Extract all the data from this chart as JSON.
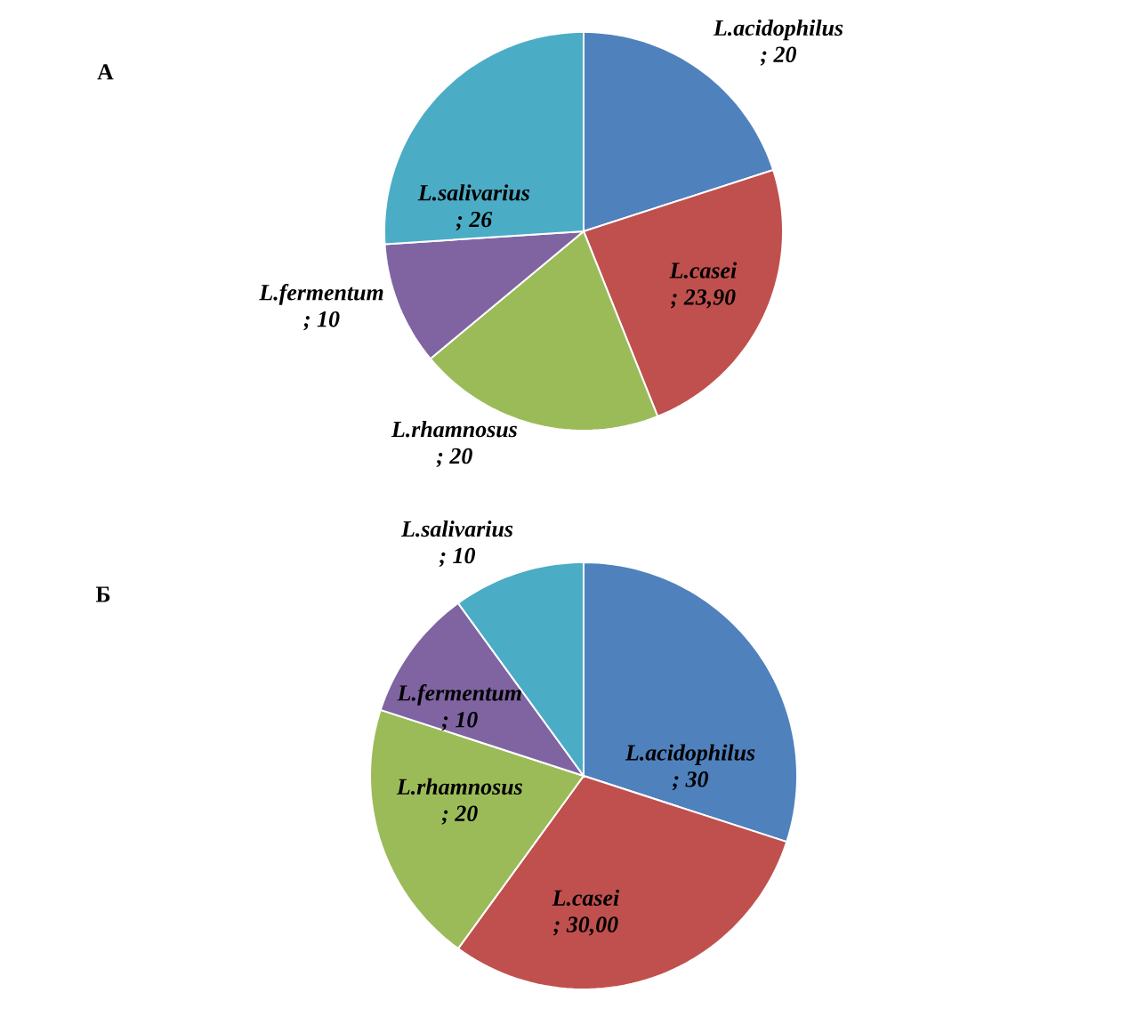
{
  "chart_data": [
    {
      "type": "pie",
      "title": "А",
      "categories": [
        "L.acidophilus",
        "L.casei",
        "L.rhamnosus",
        "L.fermentum",
        "L.salivarius"
      ],
      "values": [
        20,
        23.9,
        20,
        10,
        26
      ],
      "value_labels": [
        "; 20",
        "; 23,90",
        "; 20",
        "; 10",
        "; 26"
      ],
      "colors": [
        "#4f81bd",
        "#c0504d",
        "#9bbb59",
        "#8064a2",
        "#4bacc6"
      ]
    },
    {
      "type": "pie",
      "title": "Б",
      "categories": [
        "L.acidophilus",
        "L.casei",
        "L.rhamnosus",
        "L.fermentum",
        "L.salivarius"
      ],
      "values": [
        30,
        30,
        20,
        10,
        10
      ],
      "value_labels": [
        "; 30",
        "; 30,00",
        "; 20",
        "; 10",
        "; 10"
      ],
      "colors": [
        "#4f81bd",
        "#c0504d",
        "#9bbb59",
        "#8064a2",
        "#4bacc6"
      ]
    }
  ]
}
